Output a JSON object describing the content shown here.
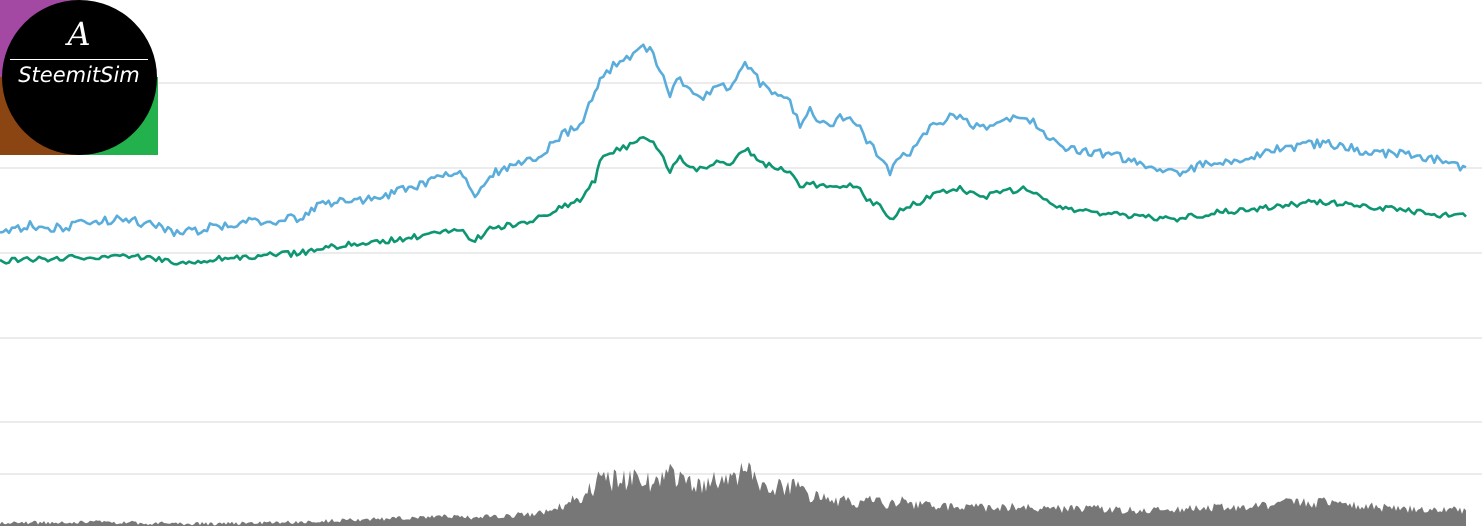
{
  "logo": {
    "letter": "A",
    "name": "SteemitSim",
    "colors": {
      "top_left": "#a349a4",
      "top_right": "#ffffff",
      "bottom_left": "#8b4513",
      "bottom_right": "#22b14c",
      "circle": "#000000",
      "text": "#ffffff"
    }
  },
  "chart_data": {
    "type": "line",
    "title": "",
    "xlabel": "",
    "ylabel": "",
    "grid": true,
    "legend": "none",
    "x": [
      0,
      30,
      60,
      90,
      120,
      150,
      180,
      210,
      240,
      270,
      300,
      320,
      340,
      360,
      380,
      400,
      420,
      440,
      460,
      475,
      490,
      510,
      530,
      550,
      565,
      580,
      595,
      600,
      610,
      620,
      630,
      640,
      650,
      660,
      670,
      680,
      690,
      700,
      710,
      720,
      730,
      745,
      760,
      775,
      790,
      800,
      810,
      820,
      830,
      840,
      850,
      860,
      870,
      880,
      890,
      900,
      910,
      920,
      930,
      940,
      950,
      960,
      970,
      980,
      990,
      1000,
      1010,
      1020,
      1030,
      1040,
      1050,
      1060,
      1080,
      1100,
      1120,
      1140,
      1160,
      1180,
      1200,
      1220,
      1240,
      1260,
      1280,
      1300,
      1320,
      1340,
      1360,
      1380,
      1400,
      1420,
      1440,
      1466
    ],
    "ylim": [
      0,
      100
    ],
    "series": [
      {
        "color": "#5aaddb",
        "values": [
          46.0,
          47.5,
          46.8,
          48.2,
          49.0,
          47.8,
          45.5,
          47.0,
          48.0,
          48.5,
          49.2,
          52.0,
          53.0,
          53.5,
          54.0,
          55.5,
          57.0,
          59.0,
          59.5,
          55.0,
          59.0,
          61.5,
          62.5,
          66.0,
          69.0,
          71.0,
          78.0,
          82.0,
          84.0,
          86.0,
          87.0,
          89.5,
          88.5,
          84.0,
          78.0,
          82.0,
          79.0,
          77.0,
          79.0,
          80.0,
          79.0,
          86.0,
          80.5,
          78.0,
          76.0,
          71.0,
          74.0,
          72.0,
          71.0,
          72.5,
          73.0,
          70.0,
          66.0,
          64.0,
          60.0,
          63.0,
          64.5,
          67.0,
          70.0,
          71.5,
          72.5,
          73.0,
          71.0,
          70.0,
          70.5,
          71.5,
          72.5,
          73.0,
          72.0,
          70.0,
          67.5,
          65.5,
          65.0,
          64.5,
          63.5,
          61.5,
          60.5,
          60.0,
          61.5,
          62.0,
          63.0,
          64.0,
          65.5,
          66.0,
          66.5,
          66.0,
          65.0,
          64.5,
          64.0,
          63.5,
          62.5,
          61.0
        ]
      },
      {
        "color": "#0e9672",
        "values": [
          39.0,
          39.5,
          39.8,
          40.0,
          40.5,
          40.0,
          38.8,
          39.5,
          40.0,
          40.5,
          41.0,
          42.0,
          42.8,
          43.2,
          43.8,
          44.2,
          45.0,
          46.0,
          46.2,
          44.0,
          46.5,
          47.5,
          48.0,
          50.5,
          52.0,
          53.5,
          58.0,
          63.0,
          64.0,
          65.5,
          66.0,
          68.0,
          67.0,
          65.0,
          60.0,
          63.0,
          61.0,
          60.5,
          61.5,
          62.5,
          62.0,
          65.5,
          62.0,
          61.0,
          60.0,
          56.0,
          57.5,
          56.5,
          56.0,
          56.8,
          57.0,
          55.5,
          53.0,
          52.0,
          48.5,
          51.0,
          52.0,
          53.0,
          54.0,
          55.0,
          55.5,
          56.0,
          55.0,
          54.0,
          54.5,
          55.0,
          55.5,
          56.0,
          55.5,
          54.0,
          52.5,
          51.5,
          51.0,
          50.5,
          50.0,
          49.5,
          49.0,
          49.0,
          49.8,
          50.5,
          51.0,
          51.5,
          52.0,
          52.5,
          53.0,
          52.5,
          52.0,
          51.5,
          51.0,
          50.5,
          50.0,
          49.5
        ]
      }
    ],
    "volume": {
      "color": "#777777",
      "ylim": [
        0,
        100
      ],
      "values": [
        4,
        5,
        4,
        6,
        5,
        4,
        3,
        3,
        4,
        5,
        5,
        7,
        8,
        9,
        10,
        11,
        12,
        14,
        13,
        11,
        14,
        15,
        17,
        21,
        30,
        40,
        55,
        70,
        62,
        68,
        64,
        66,
        60,
        70,
        72,
        62,
        58,
        55,
        60,
        64,
        68,
        78,
        62,
        56,
        52,
        56,
        44,
        42,
        38,
        36,
        34,
        30,
        38,
        34,
        30,
        36,
        32,
        30,
        28,
        27,
        26,
        28,
        27,
        26,
        25,
        26,
        27,
        28,
        27,
        26,
        25,
        24,
        25,
        24,
        23,
        22,
        22,
        23,
        25,
        26,
        28,
        30,
        32,
        34,
        33,
        30,
        28,
        26,
        25,
        24,
        23,
        22
      ]
    }
  }
}
